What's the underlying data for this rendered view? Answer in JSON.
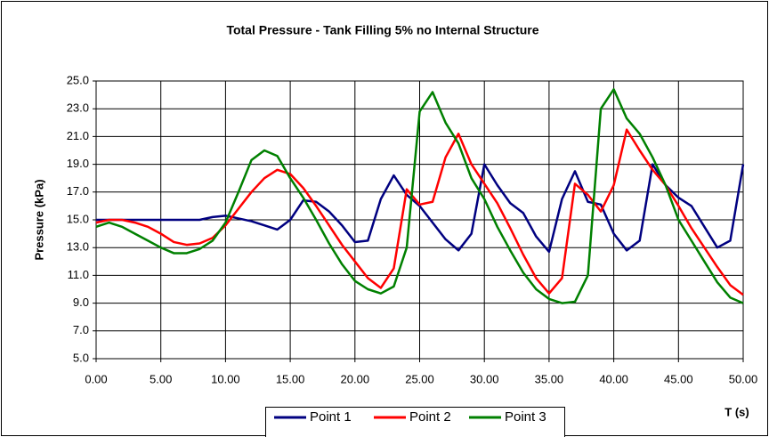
{
  "chart_data": {
    "type": "line",
    "title": "Total Pressure - Tank Filling 5% no Internal Structure",
    "ylabel": "Pressure (kPa)",
    "xlabel": "T (s)",
    "x": [
      0,
      1,
      2,
      3,
      4,
      5,
      6,
      7,
      8,
      9,
      10,
      11,
      12,
      13,
      14,
      15,
      16,
      17,
      18,
      19,
      20,
      21,
      22,
      23,
      24,
      25,
      26,
      27,
      28,
      29,
      30,
      31,
      32,
      33,
      34,
      35,
      36,
      37,
      38,
      39,
      40,
      41,
      42,
      43,
      44,
      45,
      46,
      47,
      48,
      49,
      50
    ],
    "series": [
      {
        "name": "Point 1",
        "color": "#000080",
        "values": [
          15.0,
          15.0,
          15.0,
          15.0,
          15.0,
          15.0,
          15.0,
          15.0,
          15.0,
          15.2,
          15.3,
          15.1,
          14.9,
          14.6,
          14.3,
          15.0,
          16.4,
          16.3,
          15.6,
          14.6,
          13.4,
          13.5,
          16.5,
          18.2,
          16.8,
          16.0,
          14.8,
          13.6,
          12.8,
          14.0,
          19.0,
          17.5,
          16.2,
          15.5,
          13.8,
          12.7,
          16.5,
          18.5,
          16.3,
          16.1,
          14.0,
          12.8,
          13.5,
          19.0,
          17.5,
          16.6,
          16.0,
          14.5,
          13.0,
          13.5,
          19.0
        ]
      },
      {
        "name": "Point 2",
        "color": "#ff0000",
        "values": [
          14.8,
          15.0,
          15.0,
          14.8,
          14.5,
          14.0,
          13.4,
          13.2,
          13.3,
          13.7,
          14.6,
          15.8,
          17.0,
          18.0,
          18.6,
          18.3,
          17.3,
          16.0,
          14.6,
          13.2,
          12.0,
          10.8,
          10.1,
          11.5,
          17.2,
          16.1,
          16.3,
          19.5,
          21.2,
          19.0,
          17.6,
          16.2,
          14.4,
          12.5,
          10.8,
          9.7,
          10.8,
          17.6,
          16.8,
          15.6,
          17.5,
          21.5,
          20.0,
          18.6,
          17.5,
          16.0,
          14.4,
          13.0,
          11.6,
          10.3,
          9.6
        ]
      },
      {
        "name": "Point 3",
        "color": "#008000",
        "values": [
          14.5,
          14.8,
          14.5,
          14.0,
          13.5,
          13.0,
          12.6,
          12.6,
          12.9,
          13.5,
          14.8,
          17.0,
          19.3,
          20.0,
          19.6,
          18.0,
          16.6,
          15.0,
          13.3,
          11.8,
          10.6,
          10.0,
          9.7,
          10.2,
          13.0,
          22.8,
          24.2,
          22.0,
          20.5,
          18.0,
          16.5,
          14.5,
          12.8,
          11.2,
          10.0,
          9.3,
          9.0,
          9.1,
          11.0,
          23.0,
          24.4,
          22.3,
          21.2,
          19.5,
          17.5,
          15.0,
          13.5,
          12.0,
          10.5,
          9.4,
          9.0
        ]
      }
    ],
    "xlim": [
      0,
      50
    ],
    "xticks": [
      {
        "value": 0,
        "label": "0.00"
      },
      {
        "value": 5,
        "label": "5.00"
      },
      {
        "value": 10,
        "label": "10.00"
      },
      {
        "value": 15,
        "label": "15.00"
      },
      {
        "value": 20,
        "label": "20.00"
      },
      {
        "value": 25,
        "label": "25.00"
      },
      {
        "value": 30,
        "label": "30.00"
      },
      {
        "value": 35,
        "label": "35.00"
      },
      {
        "value": 40,
        "label": "40.00"
      },
      {
        "value": 45,
        "label": "45.00"
      },
      {
        "value": 50,
        "label": "50.00"
      }
    ],
    "ylim": [
      5,
      25
    ],
    "yticks": [
      {
        "value": 5,
        "label": "5.0"
      },
      {
        "value": 7,
        "label": "7.0"
      },
      {
        "value": 9,
        "label": "9.0"
      },
      {
        "value": 11,
        "label": "11.0"
      },
      {
        "value": 13,
        "label": "13.0"
      },
      {
        "value": 15,
        "label": "15.0"
      },
      {
        "value": 17,
        "label": "17.0"
      },
      {
        "value": 19,
        "label": "19.0"
      },
      {
        "value": 21,
        "label": "21.0"
      },
      {
        "value": 23,
        "label": "23.0"
      },
      {
        "value": 25,
        "label": "25.0"
      }
    ],
    "grid": true,
    "legend": "bottom"
  }
}
